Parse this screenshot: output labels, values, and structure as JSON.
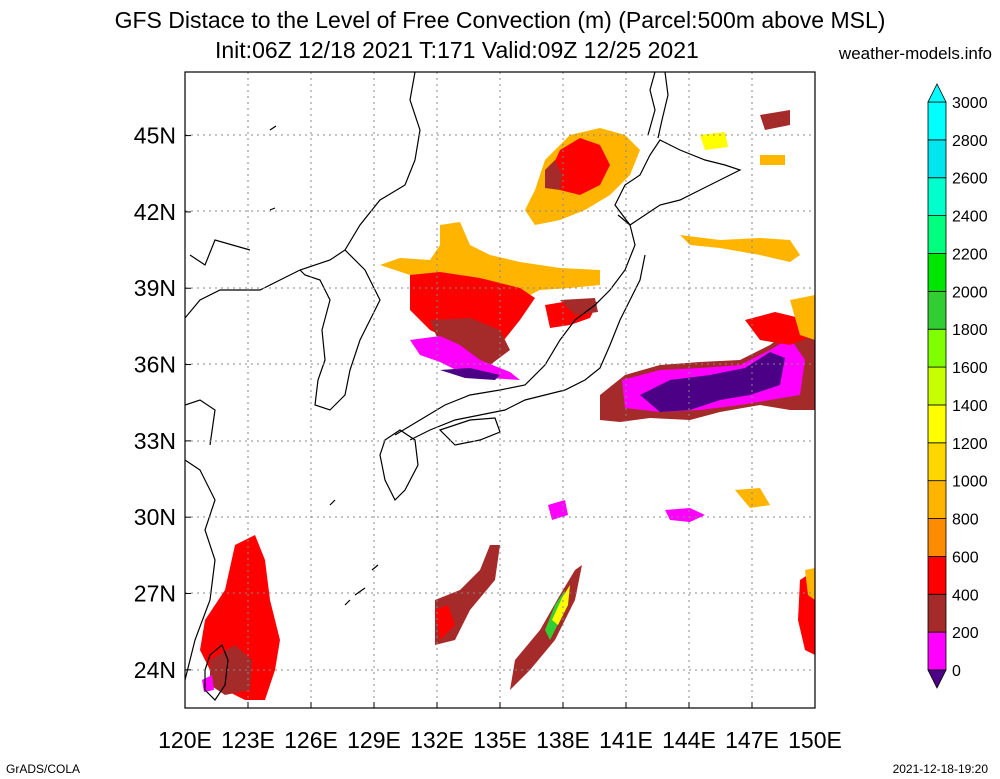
{
  "title": {
    "line1": "GFS Distace to the Level of Free Convection (m) (Parcel:500m above MSL)",
    "line2": "Init:06Z 12/18 2021 T:171 Valid:09Z 12/25 2021"
  },
  "site": "weather-models.info",
  "footer": {
    "left": "GrADS/COLA",
    "right": "2021-12-18-19:20"
  },
  "map": {
    "lon_range": [
      120,
      150
    ],
    "lat_range": [
      22.5,
      47.5
    ],
    "lon_ticks": [
      "120E",
      "123E",
      "126E",
      "129E",
      "132E",
      "135E",
      "138E",
      "141E",
      "144E",
      "147E",
      "150E"
    ],
    "lat_ticks": [
      "24N",
      "27N",
      "30N",
      "33N",
      "36N",
      "39N",
      "42N",
      "45N"
    ],
    "grid": true
  },
  "colorbar": {
    "labels": [
      "0",
      "200",
      "400",
      "600",
      "800",
      "1000",
      "1200",
      "1400",
      "1600",
      "1800",
      "2000",
      "2200",
      "2400",
      "2600",
      "2800",
      "3000"
    ],
    "colors": [
      "#4b0085",
      "#ff00ff",
      "#a52a2a",
      "#ff0000",
      "#ff8c00",
      "#ffb400",
      "#ffd700",
      "#ffff00",
      "#c8ff00",
      "#7fff00",
      "#32cd32",
      "#00e600",
      "#00ff7f",
      "#00ffcc",
      "#00e5ee",
      "#00ffff"
    ]
  }
}
